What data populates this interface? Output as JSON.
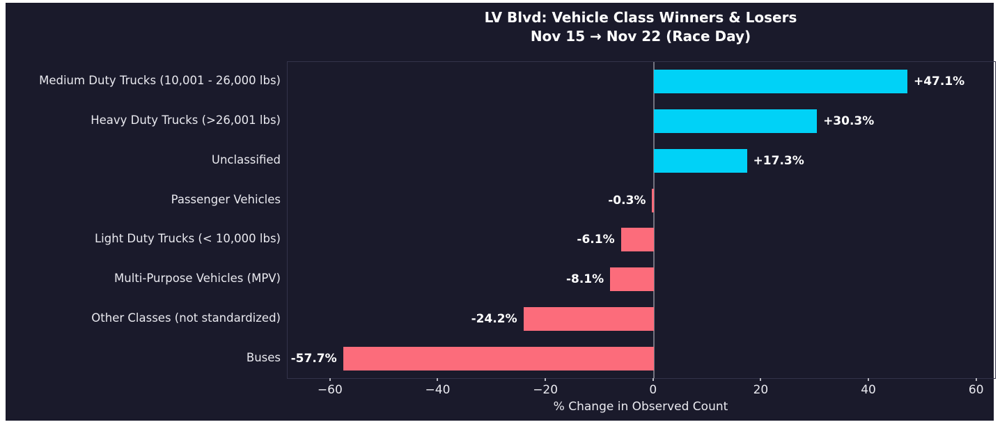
{
  "figure": {
    "background_color": "#1a1a2b",
    "frame_color": "#ffffff"
  },
  "chart_data": {
    "type": "bar",
    "orientation": "horizontal",
    "title": "LV Blvd: Vehicle Class Winners & Losers",
    "subtitle": "Nov 15 → Nov 22 (Race Day)",
    "xlabel": "% Change in Observed Count",
    "ylabel": "",
    "categories": [
      "Medium Duty Trucks (10,001 - 26,000 lbs)",
      "Heavy Duty Trucks (>26,001 lbs)",
      "Unclassified",
      "Passenger Vehicles",
      "Light Duty Trucks (< 10,000 lbs)",
      "Multi-Purpose Vehicles (MPV)",
      "Other Classes (not standardized)",
      "Buses"
    ],
    "values": [
      47.1,
      30.3,
      17.3,
      -0.3,
      -6.1,
      -8.1,
      -24.2,
      -57.7
    ],
    "value_labels": [
      "+47.1%",
      "+30.3%",
      "+17.3%",
      "-0.3%",
      "-6.1%",
      "-8.1%",
      "-24.2%",
      "-57.7%"
    ],
    "xlim": [
      -68,
      63.4
    ],
    "xticks": [
      -60,
      -40,
      -20,
      0,
      20,
      40,
      60
    ],
    "xtick_labels": [
      "−60",
      "−40",
      "−20",
      "0",
      "20",
      "40",
      "60"
    ],
    "grid": false,
    "legend": false,
    "zero_line": true,
    "colors": {
      "positive_bar": "#00d2f7",
      "negative_bar": "#fc6c7b",
      "zero_line": "#73737f",
      "spine": "#33334a",
      "title_text": "#ffffff",
      "label_text": "#e9e9ef",
      "tick_text": "#eaeaf0"
    }
  }
}
